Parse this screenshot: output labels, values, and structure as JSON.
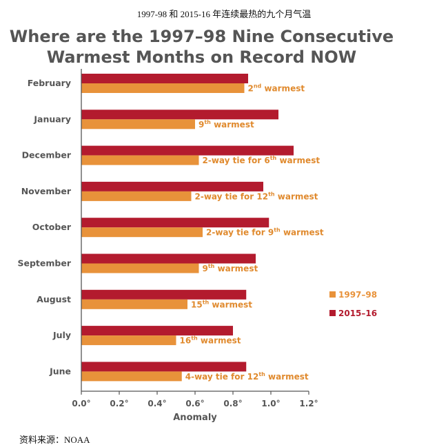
{
  "page": {
    "top_caption": "1997-98 和 2015-16 年连续最热的九个月气温",
    "bottom_caption": "资料来源：NOAA"
  },
  "chart_data": {
    "type": "bar",
    "orientation": "horizontal",
    "title_lines": [
      "Where are the 1997–98 Nine Consecutive",
      "Warmest Months on Record NOW"
    ],
    "xlabel": "Anomaly",
    "ylabel": "",
    "xlim": [
      0,
      1.2
    ],
    "x_ticks": [
      0,
      0.2,
      0.4,
      0.6,
      0.8,
      1.0,
      1.2
    ],
    "x_tick_labels": [
      "0.0°",
      "0.2°",
      "0.4°",
      "0.6°",
      "0.8°",
      "1.0°",
      "1.2°"
    ],
    "categories": [
      "February",
      "January",
      "December",
      "November",
      "October",
      "September",
      "August",
      "July",
      "June"
    ],
    "series": [
      {
        "name": "1997–98",
        "color": "#e8923a",
        "values": [
          0.86,
          0.6,
          0.62,
          0.58,
          0.64,
          0.62,
          0.56,
          0.5,
          0.53
        ],
        "notes": [
          {
            "base": "2",
            "sup": "nd",
            "rest": " warmest"
          },
          {
            "base": "9",
            "sup": "th",
            "rest": " warmest"
          },
          {
            "base": "2-way tie for 6",
            "sup": "th",
            "rest": " warmest"
          },
          {
            "base": "2-way tie for 12",
            "sup": "th",
            "rest": " warmest"
          },
          {
            "base": "2-way tie for 9",
            "sup": "th",
            "rest": " warmest"
          },
          {
            "base": "9",
            "sup": "th",
            "rest": " warmest"
          },
          {
            "base": "15",
            "sup": "th",
            "rest": " warmest"
          },
          {
            "base": "16",
            "sup": "th",
            "rest": " warmest"
          },
          {
            "base": "4-way tie for 12",
            "sup": "th",
            "rest": " warmest"
          }
        ]
      },
      {
        "name": "2015–16",
        "color": "#b31b2e",
        "values": [
          0.88,
          1.04,
          1.12,
          0.96,
          0.99,
          0.92,
          0.87,
          0.8,
          0.87
        ]
      }
    ],
    "legend": {
      "placement": "right",
      "entries": [
        "1997–98",
        "2015–16"
      ]
    },
    "grid": false
  }
}
